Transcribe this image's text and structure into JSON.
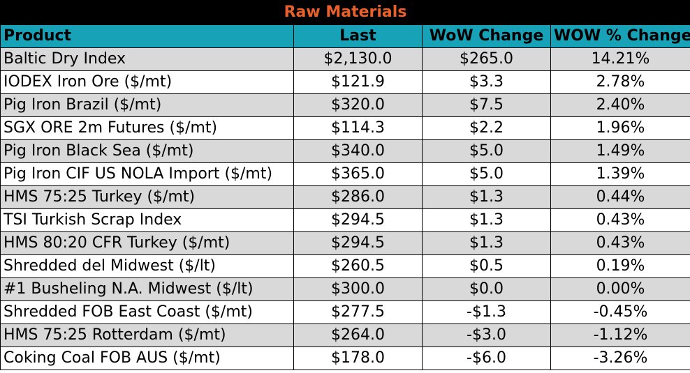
{
  "chart_data": {
    "type": "table",
    "title": "Raw Materials",
    "columns": [
      "Product",
      "Last",
      "WoW Change",
      "WOW % Change"
    ],
    "rows": [
      [
        "Baltic Dry Index",
        "$2,130.0",
        "$265.0",
        "14.21%"
      ],
      [
        "IODEX  Iron Ore ($/mt)",
        "$121.9",
        "$3.3",
        "2.78%"
      ],
      [
        "Pig Iron Brazil ($/mt)",
        "$320.0",
        "$7.5",
        "2.40%"
      ],
      [
        "SGX ORE 2m Futures ($/mt)",
        "$114.3",
        "$2.2",
        "1.96%"
      ],
      [
        "Pig Iron Black Sea ($/mt)",
        "$340.0",
        "$5.0",
        "1.49%"
      ],
      [
        "Pig Iron CIF US NOLA Import ($/mt)",
        "$365.0",
        "$5.0",
        "1.39%"
      ],
      [
        "HMS 75:25 Turkey ($/mt)",
        "$286.0",
        "$1.3",
        "0.44%"
      ],
      [
        "TSI Turkish Scrap Index",
        "$294.5",
        "$1.3",
        "0.43%"
      ],
      [
        "HMS 80:20 CFR Turkey ($/mt)",
        "$294.5",
        "$1.3",
        "0.43%"
      ],
      [
        "Shredded del  Midwest ($/lt)",
        "$260.5",
        "$0.5",
        "0.19%"
      ],
      [
        "#1 Busheling N.A. Midwest ($/lt)",
        "$300.0",
        "$0.0",
        "0.00%"
      ],
      [
        "Shredded FOB East Coast ($/mt)",
        "$277.5",
        "-$1.3",
        "-0.45%"
      ],
      [
        "HMS 75:25 Rotterdam ($/mt)",
        "$264.0",
        "-$3.0",
        "-1.12%"
      ],
      [
        "Coking Coal FOB AUS ($/mt)",
        "$178.0",
        "-$6.0",
        "-3.26%"
      ]
    ]
  },
  "colors": {
    "title_background": "#000000",
    "title_text": "#e8612c",
    "header_background": "#17a2b8",
    "shaded_row": "#d9d9d9",
    "plain_row": "#ffffff"
  }
}
